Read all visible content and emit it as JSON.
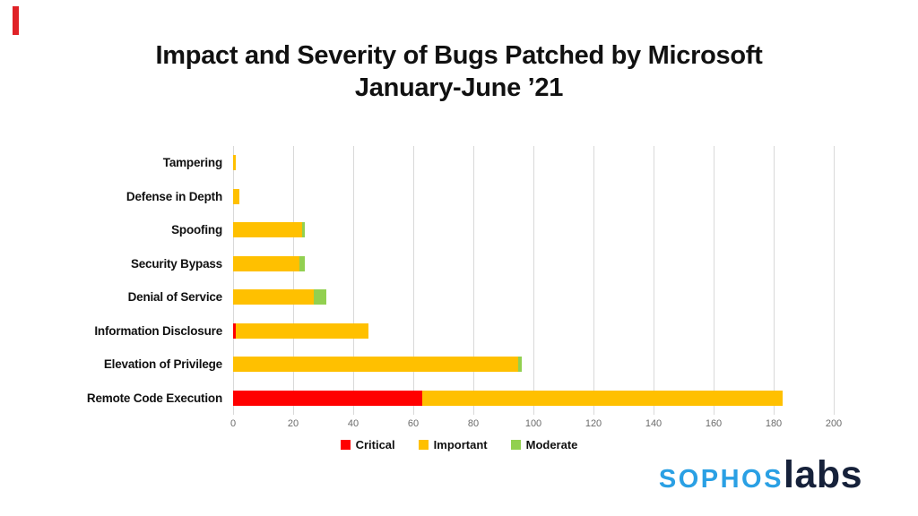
{
  "slide": {
    "accent_color": "#e02227",
    "background": "#ffffff"
  },
  "title": {
    "line1": "Impact and Severity of Bugs Patched by Microsoft",
    "line2": "January-June ’21"
  },
  "chart_data": {
    "type": "bar",
    "orientation": "horizontal",
    "stacked": true,
    "title": "Impact and Severity of Bugs Patched by Microsoft January-June ’21",
    "categories": [
      "Tampering",
      "Defense in Depth",
      "Spoofing",
      "Security Bypass",
      "Denial of Service",
      "Information Disclosure",
      "Elevation of Privilege",
      "Remote Code Execution"
    ],
    "series": [
      {
        "name": "Critical",
        "color": "#FF0000",
        "values": [
          0,
          0,
          0,
          0,
          0,
          1,
          0,
          63
        ]
      },
      {
        "name": "Important",
        "color": "#FFC000",
        "values": [
          1,
          2,
          23,
          22,
          27,
          44,
          95,
          120
        ]
      },
      {
        "name": "Moderate",
        "color": "#92D050",
        "values": [
          0,
          0,
          1,
          2,
          4,
          0,
          1,
          0
        ]
      }
    ],
    "totals": [
      1,
      2,
      24,
      24,
      31,
      45,
      96,
      183
    ],
    "xlabel": "",
    "ylabel": "",
    "xlim": [
      0,
      200
    ],
    "xticks": [
      0,
      20,
      40,
      60,
      80,
      100,
      120,
      140,
      160,
      180,
      200
    ],
    "grid": "vertical-only",
    "gridline_color": "#d9d9d9",
    "tick_label_color": "#6b6b6b",
    "legend_position": "bottom"
  },
  "logo": {
    "part1": "SOPHOS",
    "part2": "labs",
    "part1_color": "#2AA0E4",
    "part2_color": "#16213A"
  }
}
